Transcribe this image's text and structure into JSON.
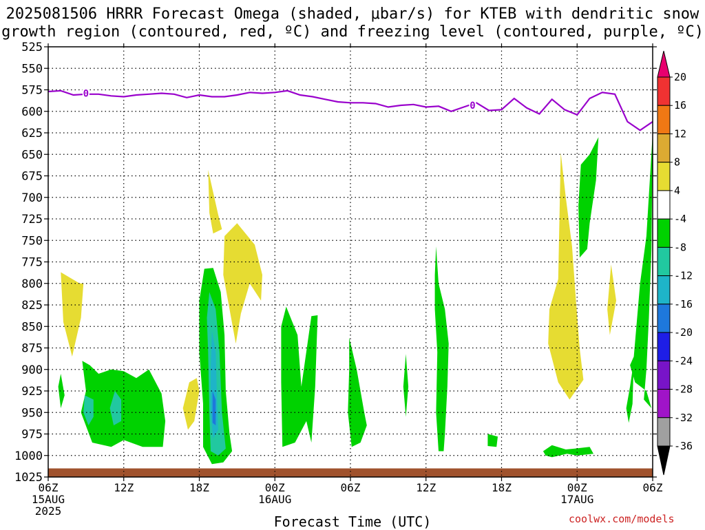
{
  "title_line1": "2025081506 HRRR Forecast Omega (shaded, μbar/s) for KTEB with dendritic snow",
  "title_line2": "growth region (contoured, red, ºC) and freezing level (contoured, purple, ºC)",
  "xlabel": "Forecast Time (UTC)",
  "credit": "coolwx.com/models",
  "colors": {
    "freezing_line": "#9900cc",
    "ground": "#a0522d",
    "yellow": "#e6dc32",
    "green": "#00d200",
    "teal": "#21c8a0",
    "cyan": "#1eb4c8",
    "blue": "#1e78dc"
  },
  "chart_data": {
    "type": "heatmap",
    "x_ticks": [
      {
        "hour": 0,
        "label": "06Z",
        "date": "15AUG",
        "year": "2025"
      },
      {
        "hour": 6,
        "label": "12Z"
      },
      {
        "hour": 12,
        "label": "18Z"
      },
      {
        "hour": 18,
        "label": "00Z",
        "date": "16AUG"
      },
      {
        "hour": 24,
        "label": "06Z"
      },
      {
        "hour": 30,
        "label": "12Z"
      },
      {
        "hour": 36,
        "label": "18Z"
      },
      {
        "hour": 42,
        "label": "00Z",
        "date": "17AUG"
      },
      {
        "hour": 48,
        "label": "06Z"
      }
    ],
    "xlim": [
      0,
      48
    ],
    "y_levels": [
      525,
      550,
      575,
      600,
      625,
      650,
      675,
      700,
      725,
      750,
      775,
      800,
      825,
      850,
      875,
      900,
      925,
      950,
      975,
      1000,
      1025
    ],
    "ylim": [
      525,
      1025
    ],
    "colorbar": {
      "values": [
        20,
        16,
        12,
        8,
        4,
        -4,
        -8,
        -12,
        -16,
        -20,
        -24,
        -28,
        -32,
        -36
      ],
      "colors": [
        "#e8006e",
        "#f03232",
        "#f07814",
        "#dcaa32",
        "#e6dc32",
        "#ffffff",
        "#00d200",
        "#21c8a0",
        "#1eb4c8",
        "#1e78dc",
        "#1e1ee6",
        "#7814c8",
        "#a014c8",
        "#a0a0a0",
        "#000000"
      ]
    },
    "freezing_level": {
      "label": "0",
      "points": [
        [
          0,
          577
        ],
        [
          1,
          576
        ],
        [
          2,
          581
        ],
        [
          3,
          580
        ],
        [
          4,
          580
        ],
        [
          5,
          582
        ],
        [
          6,
          583
        ],
        [
          7,
          581
        ],
        [
          8,
          580
        ],
        [
          9,
          579
        ],
        [
          10,
          580
        ],
        [
          11,
          584
        ],
        [
          12,
          581
        ],
        [
          13,
          583
        ],
        [
          14,
          583
        ],
        [
          15,
          581
        ],
        [
          16,
          578
        ],
        [
          17,
          579
        ],
        [
          18,
          578
        ],
        [
          19,
          576
        ],
        [
          20,
          581
        ],
        [
          21,
          583
        ],
        [
          22,
          586
        ],
        [
          23,
          589
        ],
        [
          24,
          590
        ],
        [
          25,
          590
        ],
        [
          26,
          591
        ],
        [
          27,
          595
        ],
        [
          28,
          593
        ],
        [
          29,
          592
        ],
        [
          30,
          595
        ],
        [
          31,
          594
        ],
        [
          32,
          600
        ],
        [
          33,
          595
        ],
        [
          34,
          590
        ],
        [
          35,
          599
        ],
        [
          36,
          598
        ],
        [
          37,
          585
        ],
        [
          38,
          596
        ],
        [
          39,
          603
        ],
        [
          40,
          586
        ],
        [
          41,
          598
        ],
        [
          42,
          604
        ],
        [
          43,
          585
        ],
        [
          44,
          578
        ],
        [
          45,
          580
        ],
        [
          46,
          612
        ],
        [
          47,
          622
        ],
        [
          48,
          612
        ]
      ]
    },
    "omega_regions": [
      {
        "level": "4 to 8",
        "color": "#e6dc32",
        "points": [
          [
            1,
            787
          ],
          [
            2.5,
            800
          ],
          [
            2.8,
            800
          ],
          [
            2.6,
            840
          ],
          [
            1.9,
            885
          ],
          [
            1.2,
            845
          ]
        ]
      },
      {
        "level": "4 to 8",
        "color": "#e6dc32",
        "points": [
          [
            12.7,
            668
          ],
          [
            13.5,
            720
          ],
          [
            13.8,
            737
          ],
          [
            13.1,
            742
          ],
          [
            12.8,
            718
          ]
        ]
      },
      {
        "level": "4 to 8",
        "color": "#e6dc32",
        "points": [
          [
            14,
            745
          ],
          [
            15,
            730
          ],
          [
            16.4,
            755
          ],
          [
            17,
            790
          ],
          [
            16.9,
            820
          ],
          [
            16,
            800
          ],
          [
            15.3,
            835
          ],
          [
            14.9,
            870
          ],
          [
            14.4,
            830
          ],
          [
            13.9,
            790
          ]
        ]
      },
      {
        "level": "4 to 8",
        "color": "#e6dc32",
        "points": [
          [
            11.8,
            910
          ],
          [
            12,
            925
          ],
          [
            11.6,
            960
          ],
          [
            11.1,
            970
          ],
          [
            10.7,
            945
          ],
          [
            11.2,
            915
          ]
        ]
      },
      {
        "level": "4 to 8",
        "color": "#e6dc32",
        "points": [
          [
            40.7,
            648
          ],
          [
            41.1,
            700
          ],
          [
            41.6,
            757
          ],
          [
            41.9,
            818
          ],
          [
            42.2,
            875
          ],
          [
            42.5,
            912
          ],
          [
            41.4,
            935
          ],
          [
            40.5,
            915
          ],
          [
            39.7,
            870
          ],
          [
            39.8,
            830
          ],
          [
            40.5,
            795
          ]
        ]
      },
      {
        "level": "4 to 8",
        "color": "#e6dc32",
        "points": [
          [
            44.7,
            778
          ],
          [
            45.1,
            820
          ],
          [
            44.6,
            860
          ],
          [
            44.4,
            830
          ]
        ]
      },
      {
        "level": "-8 to -4",
        "color": "#00d200",
        "points": [
          [
            2.7,
            890
          ],
          [
            3.3,
            895
          ],
          [
            4,
            905
          ],
          [
            5,
            900
          ],
          [
            6,
            902
          ],
          [
            7,
            910
          ],
          [
            8,
            900
          ],
          [
            9,
            928
          ],
          [
            9.3,
            960
          ],
          [
            9.1,
            990
          ],
          [
            7.5,
            990
          ],
          [
            6,
            982
          ],
          [
            5,
            990
          ],
          [
            3.5,
            985
          ],
          [
            2.6,
            950
          ],
          [
            3,
            925
          ]
        ]
      },
      {
        "level": "-8 to -4",
        "color": "#00d200",
        "points": [
          [
            1,
            905
          ],
          [
            1.3,
            930
          ],
          [
            1,
            945
          ],
          [
            0.8,
            920
          ]
        ]
      },
      {
        "level": "-8 to -4",
        "color": "#00d200",
        "points": [
          [
            12.4,
            783
          ],
          [
            13.1,
            782
          ],
          [
            13.7,
            810
          ],
          [
            14,
            860
          ],
          [
            14.1,
            925
          ],
          [
            14.4,
            975
          ],
          [
            14.6,
            995
          ],
          [
            13.9,
            1008
          ],
          [
            13,
            1010
          ],
          [
            12.3,
            990
          ],
          [
            12.3,
            940
          ],
          [
            12,
            880
          ],
          [
            12,
            820
          ]
        ]
      },
      {
        "level": "-8 to -4",
        "color": "#00d200",
        "points": [
          [
            18.9,
            827
          ],
          [
            19.8,
            860
          ],
          [
            20.1,
            920
          ],
          [
            20.9,
            838
          ],
          [
            21.4,
            837
          ],
          [
            21.2,
            920
          ],
          [
            20.9,
            985
          ],
          [
            20.5,
            960
          ],
          [
            19.6,
            985
          ],
          [
            18.6,
            990
          ],
          [
            18.5,
            915
          ],
          [
            18.5,
            850
          ]
        ]
      },
      {
        "level": "-8 to -4",
        "color": "#00d200",
        "points": [
          [
            23.9,
            863
          ],
          [
            24.5,
            900
          ],
          [
            25.1,
            950
          ],
          [
            25.3,
            965
          ],
          [
            24.8,
            985
          ],
          [
            24.1,
            990
          ],
          [
            23.8,
            950
          ],
          [
            23.9,
            900
          ]
        ]
      },
      {
        "level": "-8 to -4",
        "color": "#00d200",
        "points": [
          [
            28.4,
            882
          ],
          [
            28.6,
            920
          ],
          [
            28.4,
            955
          ],
          [
            28.2,
            920
          ]
        ]
      },
      {
        "level": "-8 to -4",
        "color": "#00d200",
        "points": [
          [
            30.8,
            757
          ],
          [
            31,
            800
          ],
          [
            31.5,
            830
          ],
          [
            31.8,
            870
          ],
          [
            31.7,
            920
          ],
          [
            31.5,
            975
          ],
          [
            31.4,
            995
          ],
          [
            31,
            995
          ],
          [
            30.8,
            950
          ],
          [
            30.9,
            880
          ],
          [
            30.7,
            830
          ],
          [
            30.7,
            790
          ]
        ]
      },
      {
        "level": "-8 to -4",
        "color": "#00d200",
        "points": [
          [
            34.9,
            975
          ],
          [
            35.7,
            978
          ],
          [
            35.6,
            990
          ],
          [
            34.9,
            989
          ]
        ]
      },
      {
        "level": "-8 to -4",
        "color": "#00d200",
        "points": [
          [
            39.3,
            995
          ],
          [
            40,
            988
          ],
          [
            41.1,
            993
          ],
          [
            41.8,
            992
          ],
          [
            43,
            990
          ],
          [
            43.3,
            998
          ],
          [
            42,
            1000
          ],
          [
            41.2,
            998
          ],
          [
            40,
            1002
          ],
          [
            39.5,
            1000
          ]
        ]
      },
      {
        "level": "-8 to -4",
        "color": "#00d200",
        "points": [
          [
            43.7,
            630
          ],
          [
            43.5,
            680
          ],
          [
            43,
            730
          ],
          [
            42.8,
            760
          ],
          [
            42.2,
            770
          ],
          [
            42.1,
            710
          ],
          [
            42.3,
            662
          ],
          [
            43,
            650
          ]
        ]
      },
      {
        "level": "-8 to -4",
        "color": "#00d200",
        "points": [
          [
            48,
            625
          ],
          [
            47.9,
            760
          ],
          [
            47.7,
            840
          ],
          [
            47.5,
            900
          ],
          [
            47.3,
            935
          ],
          [
            47.9,
            945
          ],
          [
            47.5,
            925
          ],
          [
            46.6,
            915
          ],
          [
            46.2,
            895
          ],
          [
            46.5,
            885
          ],
          [
            47,
            800
          ],
          [
            47.5,
            745
          ]
        ]
      },
      {
        "level": "-8 to -4",
        "color": "#00d200",
        "points": [
          [
            46.5,
            890
          ],
          [
            46.4,
            940
          ],
          [
            46.1,
            962
          ],
          [
            45.9,
            945
          ],
          [
            46.2,
            920
          ]
        ]
      },
      {
        "level": "-12 to -8",
        "color": "#21c8a0",
        "points": [
          [
            2.9,
            930
          ],
          [
            3.6,
            935
          ],
          [
            3.6,
            955
          ],
          [
            3.2,
            965
          ],
          [
            2.8,
            950
          ]
        ]
      },
      {
        "level": "-12 to -8",
        "color": "#21c8a0",
        "points": [
          [
            5.3,
            925
          ],
          [
            5.8,
            935
          ],
          [
            5.8,
            960
          ],
          [
            5.2,
            965
          ],
          [
            4.9,
            945
          ]
        ]
      },
      {
        "level": "-12 to -8",
        "color": "#21c8a0",
        "points": [
          [
            12.8,
            810
          ],
          [
            13.3,
            830
          ],
          [
            13.6,
            880
          ],
          [
            13.8,
            950
          ],
          [
            14.1,
            992
          ],
          [
            13.5,
            1000
          ],
          [
            12.9,
            995
          ],
          [
            12.8,
            950
          ],
          [
            12.7,
            880
          ],
          [
            12.6,
            840
          ]
        ]
      },
      {
        "level": "-16 to -12",
        "color": "#1eb4c8",
        "points": [
          [
            13,
            855
          ],
          [
            13.3,
            880
          ],
          [
            13.4,
            930
          ],
          [
            13.5,
            970
          ],
          [
            13.1,
            980
          ],
          [
            12.9,
            950
          ],
          [
            12.9,
            900
          ]
        ]
      },
      {
        "level": "-20 to -16",
        "color": "#1e78dc",
        "points": [
          [
            13.05,
            925
          ],
          [
            13.3,
            935
          ],
          [
            13.3,
            965
          ],
          [
            13.05,
            962
          ]
        ]
      }
    ],
    "ground": {
      "pressure": 1015
    }
  }
}
